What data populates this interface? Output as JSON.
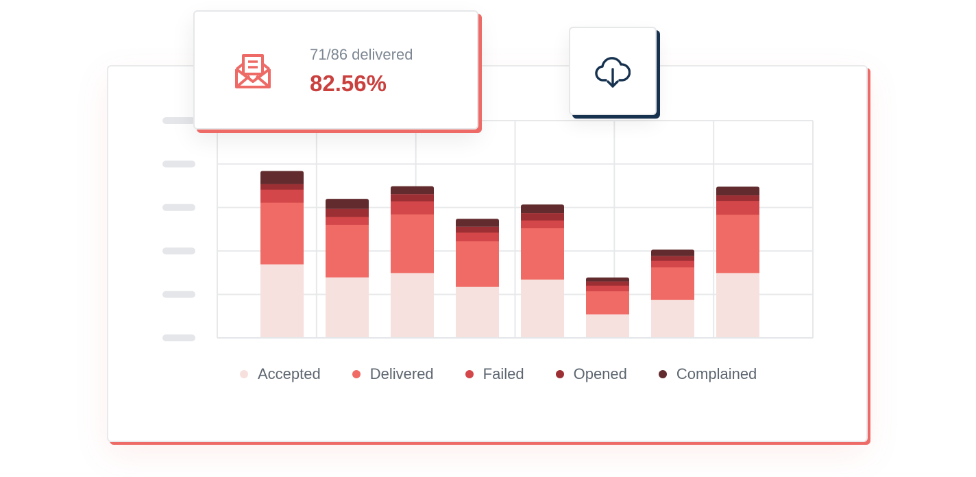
{
  "stat": {
    "subtitle": "71/86 delivered",
    "value": "82.56%",
    "icon": "envelope-icon"
  },
  "download": {
    "icon": "cloud-download-icon"
  },
  "colors": {
    "accent": "#ee6a66",
    "navy": "#17324f",
    "Accepted": "#f7e1de",
    "Delivered": "#f06b66",
    "Failed": "#d3474a",
    "Opened": "#9c2f34",
    "Complained": "#622b2e"
  },
  "chart_data": {
    "type": "bar",
    "stacked": true,
    "categories": [
      "",
      "",
      "",
      "",
      "",
      "",
      "",
      ""
    ],
    "series": [
      {
        "name": "Accepted",
        "values": [
          17,
          14,
          15,
          11.8,
          13.5,
          5.5,
          8.8,
          15
        ]
      },
      {
        "name": "Delivered",
        "values": [
          14.2,
          12.1,
          13.5,
          10.5,
          11.8,
          5.3,
          7.5,
          13.4
        ]
      },
      {
        "name": "Failed",
        "values": [
          3,
          1.8,
          3,
          2,
          1.8,
          1.3,
          1.5,
          3.2
        ]
      },
      {
        "name": "Opened",
        "values": [
          1.2,
          1.8,
          1.6,
          1.3,
          1.6,
          0.9,
          1,
          1.2
        ]
      },
      {
        "name": "Complained",
        "values": [
          3,
          2.3,
          1.8,
          1.8,
          2,
          0.9,
          1.5,
          2
        ]
      }
    ],
    "ylim": [
      0,
      50
    ],
    "grid": true,
    "legend_position": "bottom"
  }
}
